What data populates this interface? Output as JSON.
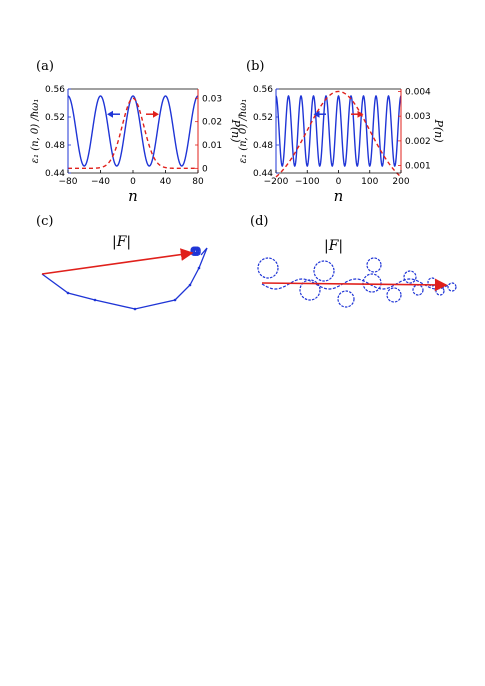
{
  "panels": {
    "a": "(a)",
    "b": "(b)",
    "c": "(c)",
    "d": "(d)"
  },
  "colors": {
    "left_series": "#1f35d6",
    "right_series": "#e0201b",
    "arrow": "#e0201b"
  },
  "icons": {
    "left_axis_pointer": "left-arrow-icon",
    "right_axis_pointer": "right-arrow-icon"
  },
  "trajectory_labels": {
    "c": "|F|",
    "d": "|F|"
  },
  "chart_data": [
    {
      "type": "line",
      "panel": "(a)",
      "xlabel": "n",
      "ylabel_left": "ε₁ (n, 0) /ħω₁",
      "ylabel_right": "P(n)",
      "xlim": [
        -80,
        80
      ],
      "ylim_left": [
        0.44,
        0.56
      ],
      "ylim_right": [
        -0.002,
        0.034
      ],
      "x_ticks": [
        "-80",
        "-40",
        "0",
        "40",
        "80"
      ],
      "y_left_ticks": [
        "0.44",
        "0.48",
        "0.52",
        "0.56"
      ],
      "y_right_ticks": [
        "0",
        "0.01",
        "0.02",
        "0.03"
      ],
      "series": [
        {
          "axis": "left",
          "style": "solid",
          "function": "cosine",
          "mean": 0.5,
          "amplitude": 0.05,
          "period": 40
        },
        {
          "axis": "right",
          "style": "dashed",
          "function": "gaussian",
          "peak": 0.03,
          "sigma": 13.3,
          "center": 0
        }
      ]
    },
    {
      "type": "line",
      "panel": "(b)",
      "xlabel": "n",
      "ylabel_left": "ε₁ (n, 0) /ħω₁",
      "ylabel_right": "P(n)",
      "xlim": [
        -200,
        200
      ],
      "ylim_left": [
        0.44,
        0.56
      ],
      "ylim_right": [
        0.0007,
        0.0041
      ],
      "x_ticks": [
        "-200",
        "-100",
        "0",
        "100",
        "200"
      ],
      "y_left_ticks": [
        "0.44",
        "0.48",
        "0.52",
        "0.56"
      ],
      "y_right_ticks": [
        "0.001",
        "0.002",
        "0.003",
        "0.004"
      ],
      "series": [
        {
          "axis": "left",
          "style": "solid",
          "function": "cosine",
          "mean": 0.5,
          "amplitude": 0.05,
          "period": 40
        },
        {
          "axis": "right",
          "style": "dashed",
          "function": "gaussian",
          "peak": 0.004,
          "sigma": 100,
          "center": 0
        }
      ]
    }
  ]
}
